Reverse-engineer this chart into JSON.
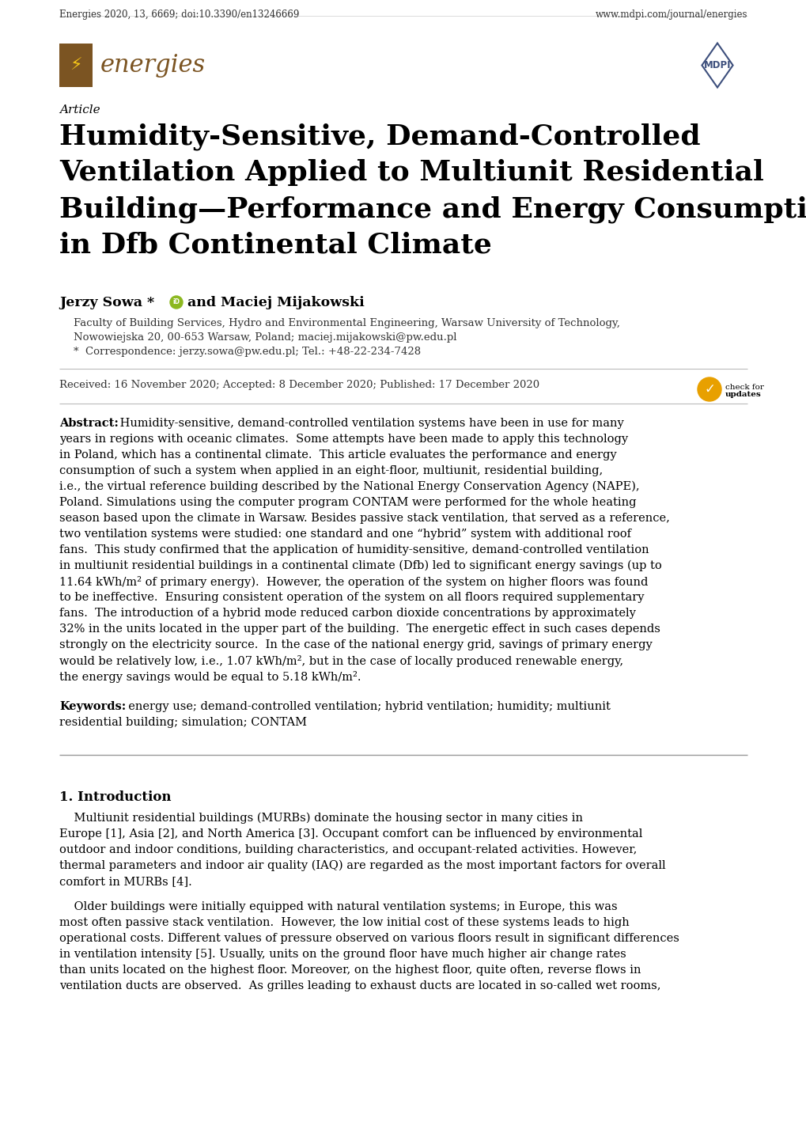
{
  "page_width": 10.2,
  "page_height": 14.42,
  "dpi": 100,
  "background_color": "#ffffff",
  "text_color": "#000000",
  "gray_text_color": "#333333",
  "logo_brown": "#7B5422",
  "logo_text_color": "#7B5422",
  "mdpi_blue": "#3D4F7C",
  "journal_name": "energies",
  "article_label": "Article",
  "title_line1": "Humidity-Sensitive, Demand-Controlled",
  "title_line2": "Ventilation Applied to Multiunit Residential",
  "title_line3": "Building—Performance and Energy Consumption",
  "title_line4": "in Dfb Continental Climate",
  "authors": "Jerzy Sowa * ",
  "authors2": "and Maciej Mijakowski",
  "affil1": "Faculty of Building Services, Hydro and Environmental Engineering, Warsaw University of Technology,",
  "affil2": "Nowowiejska 20, 00-653 Warsaw, Poland; maciej.mijakowski@pw.edu.pl",
  "correspondence": "*  Correspondence: jerzy.sowa@pw.edu.pl; Tel.: +48-22-234-7428",
  "dates": "Received: 16 November 2020; Accepted: 8 December 2020; Published: 17 December 2020",
  "abstract_label": "Abstract:",
  "abstract_body": " Humidity-sensitive, demand-controlled ventilation systems have been in use for many years in regions with oceanic climates.  Some attempts have been made to apply this technology in Poland, which has a continental climate.  This article evaluates the performance and energy consumption of such a system when applied in an eight-floor, multiunit, residential building, i.e., the virtual reference building described by the National Energy Conservation Agency (NAPE), Poland. Simulations using the computer program CONTAM were performed for the whole heating season based upon the climate in Warsaw. Besides passive stack ventilation, that served as a reference, two ventilation systems were studied: one standard and one “hybrid” system with additional roof fans.  This study confirmed that the application of humidity-sensitive, demand-controlled ventilation in multiunit residential buildings in a continental climate (Dfb) led to significant energy savings (up to 11.64 kWh/m² of primary energy).  However, the operation of the system on higher floors was found to be ineffective.  Ensuring consistent operation of the system on all floors required supplementary fans.  The introduction of a hybrid mode reduced carbon dioxide concentrations by approximately 32% in the units located in the upper part of the building.  The energetic effect in such cases depends strongly on the electricity source.  In the case of the national energy grid, savings of primary energy would be relatively low, i.e., 1.07 kWh/m², but in the case of locally produced renewable energy, the energy savings would be equal to 5.18 kWh/m².",
  "kw_label": "Keywords:",
  "kw_body": "  energy use; demand-controlled ventilation; hybrid ventilation; humidity; multiunit residential building; simulation; CONTAM",
  "sec1_title": "1. Introduction",
  "p1_lines": [
    "    Multiunit residential buildings (MURBs) dominate the housing sector in many cities in",
    "Europe [1], Asia [2], and North America [3]. Occupant comfort can be influenced by environmental",
    "outdoor and indoor conditions, building characteristics, and occupant-related activities. However,",
    "thermal parameters and indoor air quality (IAQ) are regarded as the most important factors for overall",
    "comfort in MURBs [4]."
  ],
  "p2_lines": [
    "    Older buildings were initially equipped with natural ventilation systems; in Europe, this was",
    "most often passive stack ventilation.  However, the low initial cost of these systems leads to high",
    "operational costs. Different values of pressure observed on various floors result in significant differences",
    "in ventilation intensity [5]. Usually, units on the ground floor have much higher air change rates",
    "than units located on the highest floor. Moreover, on the highest floor, quite often, reverse flows in",
    "ventilation ducts are observed.  As grilles leading to exhaust ducts are located in so-called wet rooms,"
  ],
  "footer_left": "Energies 2020, 13, 6669; doi:10.3390/en13246669",
  "footer_right": "www.mdpi.com/journal/energies"
}
